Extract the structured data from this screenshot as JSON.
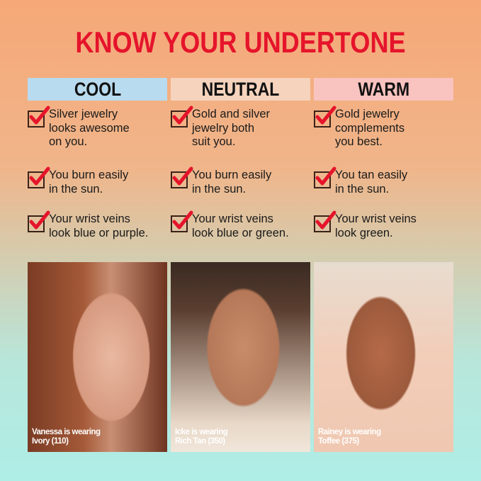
{
  "title": "KNOW YOUR UNDERTONE",
  "columns": [
    {
      "header": "COOL",
      "color": "#b9dbef",
      "items": [
        "Silver jewelry\nlooks awesome\non you.",
        "You burn easily\nin the sun.",
        "Your wrist veins\nlook blue or purple."
      ],
      "caption": "Vanessa is wearing\nIvory (110)"
    },
    {
      "header": "NEUTRAL",
      "color": "#f5d3bd",
      "items": [
        "Gold and silver\njewelry both\nsuit you.",
        "You burn easily\nin the sun.",
        "Your wrist veins\nlook blue or green."
      ],
      "caption": "Icke is wearing\nRich Tan (350)"
    },
    {
      "header": "WARM",
      "color": "#f9c3bf",
      "items": [
        "Gold jewelry\ncomplements\nyou best.",
        "You tan easily\nin the sun.",
        "Your wrist veins\nlook green."
      ],
      "caption": "Rainey is wearing\nToffee (375)"
    }
  ],
  "icons": {
    "check": "checked-checkbox-icon"
  },
  "accent": "#e5142b"
}
